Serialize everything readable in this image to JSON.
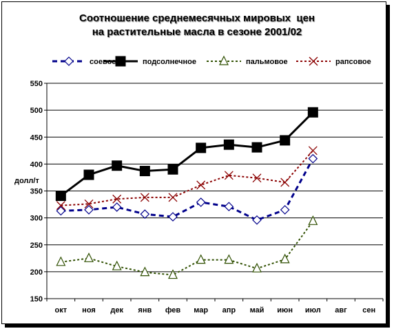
{
  "chart_data": {
    "type": "line",
    "title_line1": "Соотношение среднемесячных мировых  цен",
    "title_line2": "на растительные масла в сезоне 2001/02",
    "ylabel": "долл/т",
    "ylim": [
      150,
      550
    ],
    "yticks": [
      150,
      200,
      250,
      300,
      350,
      400,
      450,
      500,
      550
    ],
    "categories": [
      "окт",
      "ноя",
      "дек",
      "янв",
      "фев",
      "мар",
      "апр",
      "май",
      "июн",
      "июл",
      "авг",
      "сен"
    ],
    "grid": true,
    "legend_position": "top",
    "series": [
      {
        "name": "соевое",
        "color": "#00008b",
        "marker": "diamond",
        "line": "dashed",
        "values": [
          313,
          315,
          320,
          307,
          302,
          329,
          321,
          296,
          315,
          410,
          null,
          null
        ]
      },
      {
        "name": "подсолнечное",
        "color": "#000000",
        "marker": "square",
        "line": "solid",
        "values": [
          341,
          380,
          397,
          387,
          390,
          430,
          436,
          431,
          444,
          496,
          null,
          null
        ]
      },
      {
        "name": "пальмовое",
        "color": "#2f4f00",
        "marker": "triangle",
        "line": "dotted",
        "values": [
          218,
          225,
          210,
          199,
          194,
          222,
          222,
          206,
          223,
          294,
          null,
          null
        ]
      },
      {
        "name": "рапсовое",
        "color": "#8b0000",
        "marker": "x",
        "line": "dotted",
        "values": [
          323,
          326,
          335,
          338,
          338,
          361,
          379,
          374,
          366,
          425,
          null,
          null
        ]
      }
    ]
  }
}
